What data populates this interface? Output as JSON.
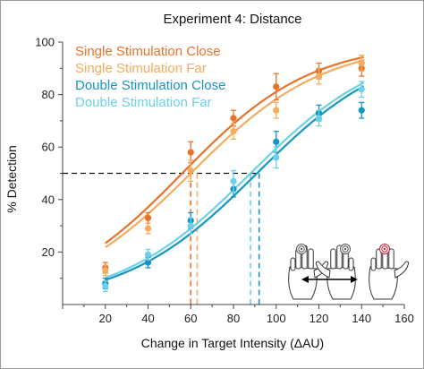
{
  "chart_data": {
    "type": "scatter",
    "title": "Experiment 4: Distance",
    "xlabel": "Change in Target Intensity (ΔAU)",
    "ylabel": "% Detection",
    "xlim": [
      0,
      160
    ],
    "ylim": [
      0,
      100
    ],
    "xticks": [
      0,
      20,
      40,
      60,
      80,
      100,
      120,
      140,
      160
    ],
    "xtick_labels": [
      "20",
      "40",
      "60",
      "80",
      "100",
      "120",
      "140",
      "160"
    ],
    "yticks": [
      20,
      40,
      60,
      80,
      100
    ],
    "ytick_labels": [
      "20",
      "40",
      "60",
      "80",
      "100"
    ],
    "legend_position": "top-left",
    "threshold_line": {
      "y": 50,
      "x_end": 92
    },
    "series": [
      {
        "name": "Single Stimulation Close",
        "color": "#E8722A",
        "x": [
          20,
          40,
          60,
          80,
          100,
          120,
          140
        ],
        "y": [
          14,
          33,
          58,
          71,
          83,
          89,
          90
        ],
        "err": [
          2,
          2,
          4,
          3,
          5,
          3,
          3
        ],
        "fit": {
          "x0": 56,
          "k": 0.033
        },
        "threshold_x": 60
      },
      {
        "name": "Single Stimulation Far",
        "color": "#F4AC5E",
        "x": [
          20,
          40,
          60,
          80,
          100,
          120,
          140
        ],
        "y": [
          13,
          29,
          51,
          66,
          74,
          87,
          92
        ],
        "err": [
          2,
          2,
          4,
          3,
          3,
          3,
          3
        ],
        "fit": {
          "x0": 60,
          "k": 0.032
        },
        "threshold_x": 63
      },
      {
        "name": "Double Stimulation Close",
        "color": "#1495C2",
        "x": [
          20,
          40,
          60,
          80,
          100,
          120,
          140
        ],
        "y": [
          8,
          16,
          32,
          44,
          62,
          73,
          74
        ],
        "err": [
          2,
          2,
          3,
          3,
          4,
          3,
          3
        ],
        "fit": {
          "x0": 91,
          "k": 0.032
        },
        "threshold_x": 92
      },
      {
        "name": "Double Stimulation Far",
        "color": "#6ED0E6",
        "x": [
          20,
          40,
          60,
          80,
          100,
          120,
          140
        ],
        "y": [
          7,
          19,
          30,
          47,
          56,
          71,
          82
        ],
        "err": [
          2,
          2,
          3,
          4,
          4,
          3,
          3
        ],
        "fit": {
          "x0": 88,
          "k": 0.032
        },
        "threshold_x": 88
      }
    ]
  },
  "inset_icon": "hands-distance-icon",
  "colors": {
    "axis": "#444444",
    "threshold": "#111111",
    "hand_stroke": "#333333",
    "target_red": "#D8203A",
    "target_gray": "#555555"
  }
}
